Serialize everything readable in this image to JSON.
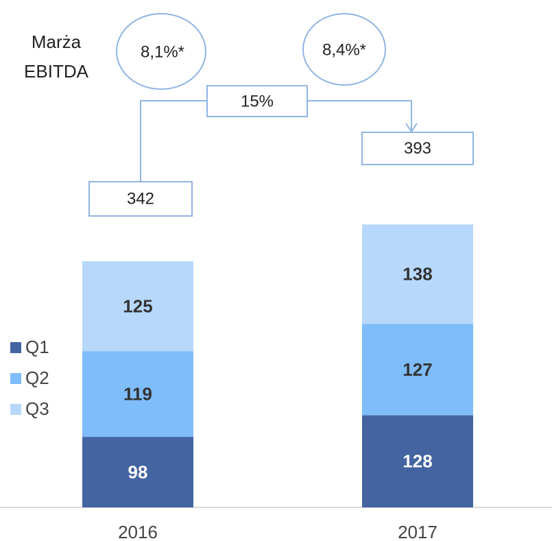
{
  "chart_data": {
    "type": "stacked_bar",
    "categories": [
      "2016",
      "2017"
    ],
    "series": [
      {
        "name": "Q1",
        "color": "#4364a0",
        "values": [
          98,
          128
        ]
      },
      {
        "name": "Q2",
        "color": "#7fbcfa",
        "values": [
          119,
          127
        ]
      },
      {
        "name": "Q3",
        "color": "#b7d8fb",
        "values": [
          125,
          138
        ]
      }
    ],
    "totals": [
      342,
      393
    ],
    "growth_label": "15%",
    "margin_title": [
      "Marża",
      "EBITDA"
    ],
    "margin_labels": [
      "8,1%*",
      "8,4%*"
    ],
    "legend": "left"
  }
}
